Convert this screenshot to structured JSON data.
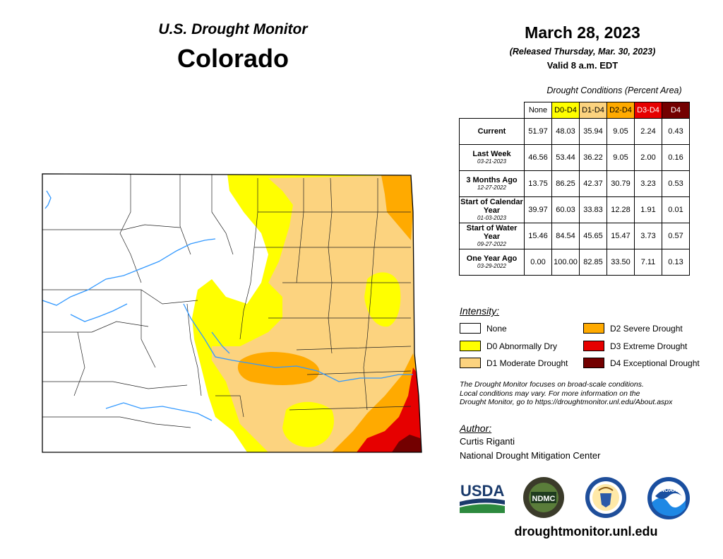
{
  "header": {
    "title": "U.S. Drought Monitor",
    "state": "Colorado",
    "date": "March 28, 2023",
    "released": "(Released Thursday, Mar. 30, 2023)",
    "valid": "Valid 8 a.m. EDT"
  },
  "table": {
    "caption": "Drought Conditions (Percent Area)",
    "columns": [
      {
        "label": "None",
        "color": "#ffffff",
        "text_color": "#000000"
      },
      {
        "label": "D0-D4",
        "color": "#ffff00",
        "text_color": "#000000"
      },
      {
        "label": "D1-D4",
        "color": "#fcd37f",
        "text_color": "#000000"
      },
      {
        "label": "D2-D4",
        "color": "#ffaa00",
        "text_color": "#000000"
      },
      {
        "label": "D3-D4",
        "color": "#e60000",
        "text_color": "#ffffff"
      },
      {
        "label": "D4",
        "color": "#730000",
        "text_color": "#ffffff"
      }
    ],
    "rows": [
      {
        "label": "Current",
        "sub": "",
        "values": [
          "51.97",
          "48.03",
          "35.94",
          "9.05",
          "2.24",
          "0.43"
        ]
      },
      {
        "label": "Last Week",
        "sub": "03-21-2023",
        "values": [
          "46.56",
          "53.44",
          "36.22",
          "9.05",
          "2.00",
          "0.16"
        ]
      },
      {
        "label": "3 Months Ago",
        "sub": "12-27-2022",
        "values": [
          "13.75",
          "86.25",
          "42.37",
          "30.79",
          "3.23",
          "0.53"
        ]
      },
      {
        "label": "Start of Calendar Year",
        "sub": "01-03-2023",
        "values": [
          "39.97",
          "60.03",
          "33.83",
          "12.28",
          "1.91",
          "0.01"
        ]
      },
      {
        "label": "Start of Water Year",
        "sub": "09-27-2022",
        "values": [
          "15.46",
          "84.54",
          "45.65",
          "15.47",
          "3.73",
          "0.57"
        ]
      },
      {
        "label": "One Year Ago",
        "sub": "03-29-2022",
        "values": [
          "0.00",
          "100.00",
          "82.85",
          "33.50",
          "7.11",
          "0.13"
        ]
      }
    ]
  },
  "legend": {
    "title": "Intensity:",
    "items": [
      {
        "label": "None",
        "color": "#ffffff"
      },
      {
        "label": "D0 Abnormally Dry",
        "color": "#ffff00"
      },
      {
        "label": "D1 Moderate Drought",
        "color": "#fcd37f"
      },
      {
        "label": "D2 Severe Drought",
        "color": "#ffaa00"
      },
      {
        "label": "D3 Extreme Drought",
        "color": "#e60000"
      },
      {
        "label": "D4 Exceptional Drought",
        "color": "#730000"
      }
    ]
  },
  "note": {
    "line1": "The Drought Monitor focuses on broad-scale conditions.",
    "line2": "Local conditions may vary. For more information on the",
    "line3": "Drought Monitor, go to https://droughtmonitor.unl.edu/About.aspx"
  },
  "author": {
    "label": "Author:",
    "name": "Curtis Riganti",
    "org": "National Drought Mitigation Center"
  },
  "logos": {
    "usda": "USDA",
    "ndmc": "NDMC",
    "noaa": "NOAA"
  },
  "website": "droughtmonitor.unl.edu",
  "colors": {
    "none": "#ffffff",
    "d0": "#ffff00",
    "d1": "#fcd37f",
    "d2": "#ffaa00",
    "d3": "#e60000",
    "d4": "#730000",
    "rivers": "#3399ff"
  }
}
